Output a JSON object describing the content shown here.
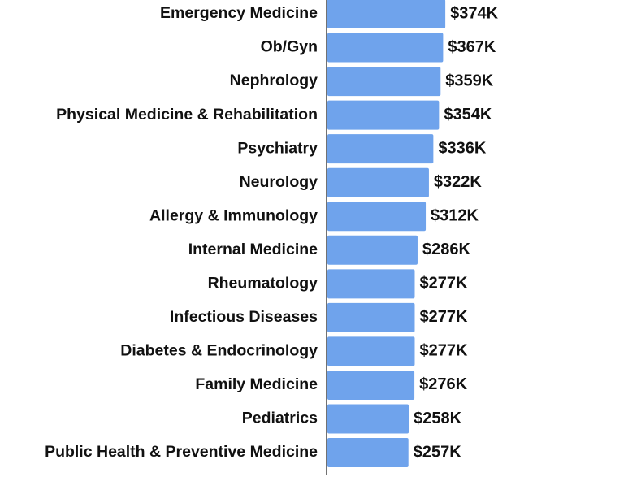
{
  "chart_data": {
    "type": "bar",
    "orientation": "horizontal",
    "color": "#6fa3ec",
    "categories": [
      "Emergency Medicine",
      "Ob/Gyn",
      "Nephrology",
      "Physical Medicine & Rehabilitation",
      "Psychiatry",
      "Neurology",
      "Allergy & Immunology",
      "Internal Medicine",
      "Rheumatology",
      "Infectious Diseases",
      "Diabetes & Endocrinology",
      "Family Medicine",
      "Pediatrics",
      "Public Health & Preventive Medicine"
    ],
    "values": [
      374,
      367,
      359,
      354,
      336,
      322,
      312,
      286,
      277,
      277,
      277,
      276,
      258,
      257
    ],
    "value_labels": [
      "$374K",
      "$367K",
      "$359K",
      "$354K",
      "$336K",
      "$322K",
      "$312K",
      "$286K",
      "$277K",
      "$277K",
      "$277K",
      "$276K",
      "$258K",
      "$257K"
    ]
  }
}
